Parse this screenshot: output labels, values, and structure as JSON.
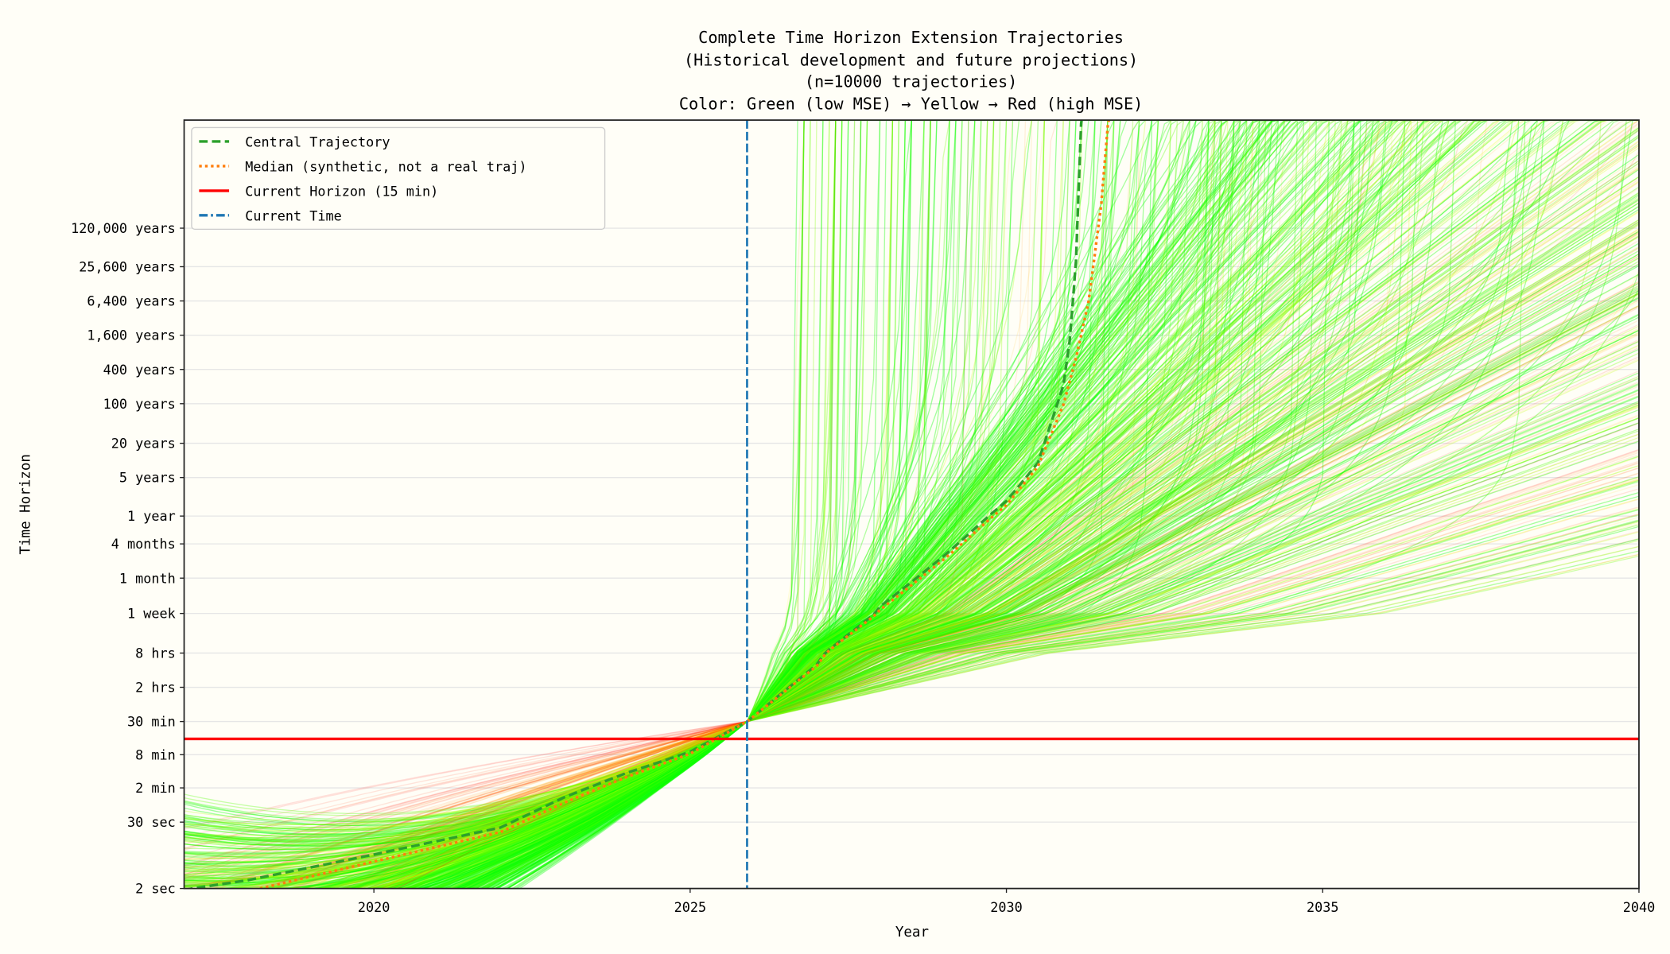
{
  "chart_data": {
    "type": "line",
    "title": [
      "Complete Time Horizon Extension Trajectories",
      "(Historical development and future projections)",
      "(n=10000 trajectories)",
      "Color: Green (low MSE) → Yellow → Red (high MSE)"
    ],
    "xlabel": "Year",
    "ylabel": "Time Horizon",
    "xlim": [
      2017,
      2040
    ],
    "x_ticks": [
      2020,
      2025,
      2030,
      2035,
      2040
    ],
    "y_scale": "log (custom)",
    "y_ticks": [
      {
        "label": "2 sec",
        "seconds": 2
      },
      {
        "label": "30 sec",
        "seconds": 30
      },
      {
        "label": "2 min",
        "seconds": 120
      },
      {
        "label": "8 min",
        "seconds": 480
      },
      {
        "label": "30 min",
        "seconds": 1800
      },
      {
        "label": "2 hrs",
        "seconds": 7200
      },
      {
        "label": "8 hrs",
        "seconds": 28800
      },
      {
        "label": "1 week",
        "seconds": 604800
      },
      {
        "label": "1 month",
        "seconds": 2629800
      },
      {
        "label": "4 months",
        "seconds": 10519200
      },
      {
        "label": "1 year",
        "seconds": 31557600
      },
      {
        "label": "5 years",
        "seconds": 157788000
      },
      {
        "label": "20 years",
        "seconds": 631152000
      },
      {
        "label": "100 years",
        "seconds": 3155760000
      },
      {
        "label": "400 years",
        "seconds": 12623040000
      },
      {
        "label": "1,600 years",
        "seconds": 50492160000
      },
      {
        "label": "6,400 years",
        "seconds": 201968640000
      },
      {
        "label": "25,600 years",
        "seconds": 807874560000
      },
      {
        "label": "120,000 years",
        "seconds": 3786912000000
      }
    ],
    "grid": true,
    "legend_position": "top-left",
    "series": [
      {
        "name": "Central Trajectory",
        "color": "#2ca02c",
        "style": "dashed",
        "points": [
          [
            2017.0,
            1.9
          ],
          [
            2018,
            2.8
          ],
          [
            2020,
            8
          ],
          [
            2022,
            24
          ],
          [
            2023,
            81
          ],
          [
            2024,
            225
          ],
          [
            2025,
            540
          ],
          [
            2025.9,
            1800
          ],
          [
            2027,
            18000
          ],
          [
            2028,
            800000
          ],
          [
            2029,
            6300000
          ],
          [
            2030,
            59000000
          ],
          [
            2030.5,
            290000000
          ],
          [
            2030.9,
            6600000000
          ],
          [
            2031.0,
            40000000000
          ],
          [
            2031.1,
            1000000000000
          ],
          [
            2031.2,
            1000000000000000.0
          ]
        ]
      },
      {
        "name": "Median (synthetic, not a real traj)",
        "color": "#ff7f0e",
        "style": "dotted",
        "points": [
          [
            2018.2,
            2
          ],
          [
            2020,
            6
          ],
          [
            2022,
            20
          ],
          [
            2023,
            65
          ],
          [
            2024,
            190
          ],
          [
            2025,
            500
          ],
          [
            2025.9,
            1800
          ],
          [
            2027,
            17000
          ],
          [
            2028,
            700000
          ],
          [
            2029,
            5500000
          ],
          [
            2030,
            50000000
          ],
          [
            2030.5,
            250000000
          ],
          [
            2030.9,
            3000000000
          ],
          [
            2031.1,
            20000000000
          ],
          [
            2031.3,
            200000000000
          ],
          [
            2031.5,
            10000000000000
          ],
          [
            2031.65,
            1000000000000000.0
          ]
        ]
      },
      {
        "name": "Current Horizon (15 min)",
        "color": "#ff0000",
        "style": "solid",
        "y_seconds": 900
      },
      {
        "name": "Current Time",
        "color": "#1f77b4",
        "style": "dashed",
        "x_year": 2025.9
      }
    ],
    "trajectory_count": 10000,
    "trajectory_colors": {
      "low_mse": "#00ff00",
      "mid_mse": "#ffff00",
      "high_mse": "#ff0000"
    }
  }
}
